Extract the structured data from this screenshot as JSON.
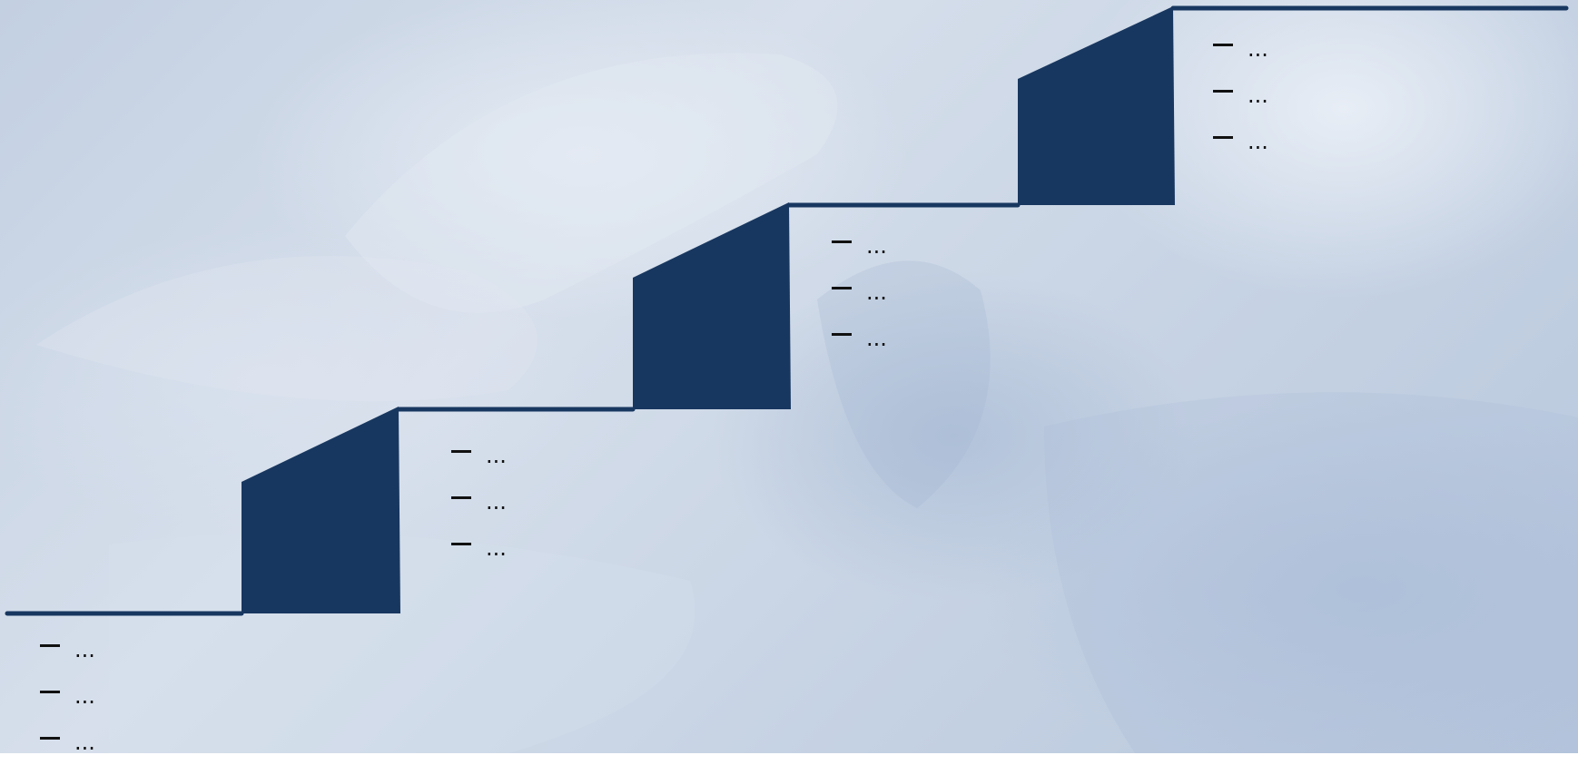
{
  "colors": {
    "stair_fill": "#183760",
    "text": "#111111"
  },
  "steps": [
    {
      "name": "step-1",
      "items": [
        "...",
        "...",
        "..."
      ]
    },
    {
      "name": "step-2",
      "items": [
        "...",
        "...",
        "..."
      ]
    },
    {
      "name": "step-3",
      "items": [
        "...",
        "...",
        "..."
      ]
    },
    {
      "name": "step-4",
      "items": [
        "...",
        "...",
        "..."
      ]
    }
  ]
}
